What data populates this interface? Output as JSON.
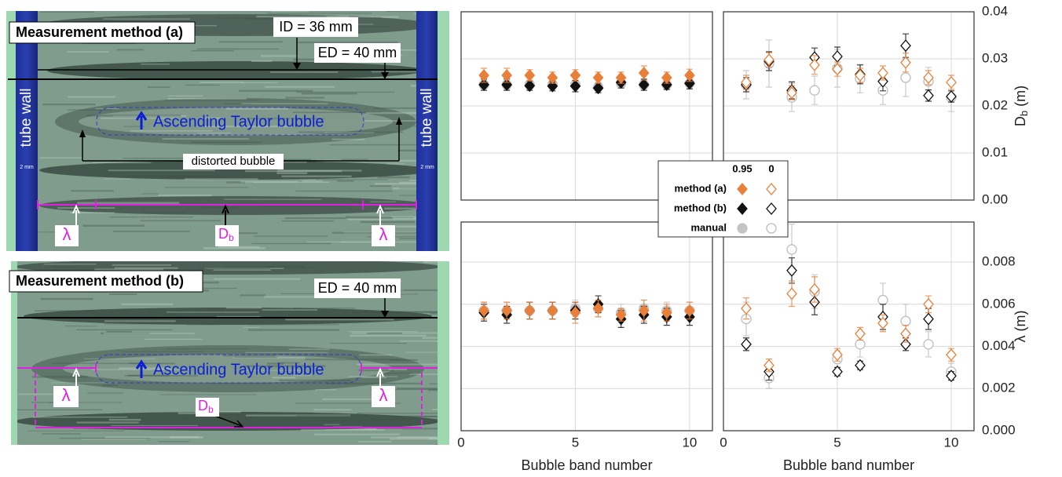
{
  "image_a": {
    "title": "Measurement method (a)",
    "id_label": "ID = 36 mm",
    "ed_label": "ED = 40 mm",
    "wall_label": "tube wall",
    "scale_label": "2 mm",
    "bubble_label": "Ascending Taylor bubble",
    "distorted_label": "distorted bubble",
    "lambda": "λ",
    "db": "D",
    "db_sub": "b"
  },
  "image_b": {
    "title": "Measurement method (b)",
    "ed_label": "ED = 40 mm",
    "bubble_label": "Ascending Taylor bubble",
    "lambda": "λ",
    "db": "D",
    "db_sub": "b"
  },
  "legend": {
    "columns": [
      "0.95",
      "0"
    ],
    "rows": [
      "method (a)",
      "method (b)",
      "manual"
    ]
  },
  "chart_data": [
    {
      "type": "scatter",
      "x": [
        1,
        2,
        3,
        4,
        5,
        6,
        7,
        8,
        9,
        10
      ],
      "xlim": [
        0,
        11
      ],
      "xticks": [
        0,
        5,
        10
      ],
      "ylim": [
        0,
        0.04
      ],
      "yticks": [
        {
          "value": 0,
          "label": "0.00"
        },
        0.01,
        0.02,
        0.03,
        0.04
      ],
      "grid": true,
      "show_xtick_labels": false,
      "show_ytick_labels": false,
      "series": [
        {
          "color": "#e8803a",
          "marker": "diamond",
          "filled": true,
          "values": [
            0.0265,
            0.0265,
            0.0265,
            0.026,
            0.0265,
            0.026,
            0.026,
            0.027,
            0.026,
            0.0265
          ],
          "errors": [
            0.0015,
            0.0015,
            0.0012,
            0.0012,
            0.0012,
            0.0012,
            0.0012,
            0.0015,
            0.0012,
            0.0013
          ]
        },
        {
          "color": "#111111",
          "marker": "diamond",
          "filled": true,
          "values": [
            0.0245,
            0.0245,
            0.0243,
            0.0242,
            0.0242,
            0.0238,
            0.025,
            0.0245,
            0.0245,
            0.0248
          ],
          "errors": [
            0.0012,
            0.0012,
            0.001,
            0.001,
            0.0012,
            0.001,
            0.0012,
            0.0012,
            0.001,
            0.0012
          ]
        },
        {
          "color": "#c4c4c4",
          "marker": "circle",
          "filled": true,
          "values": [
            0.0245,
            0.0245,
            0.0245,
            0.0245,
            0.0245,
            0.024,
            0.0248,
            0.0245,
            0.0245,
            0.0248
          ],
          "errors": [
            0.001,
            0.001,
            0.001,
            0.001,
            0.001,
            0.001,
            0.001,
            0.001,
            0.001,
            0.001
          ]
        }
      ]
    },
    {
      "type": "scatter",
      "x": [
        1,
        2,
        3,
        4,
        5,
        6,
        7,
        8,
        9,
        10
      ],
      "xlim": [
        0,
        11
      ],
      "xticks": [
        0,
        5,
        10
      ],
      "ylim": [
        0,
        0.04
      ],
      "yticks": [
        {
          "value": 0,
          "label": "0.00"
        },
        0.01,
        0.02,
        0.03,
        0.04
      ],
      "grid": true,
      "show_xtick_labels": false,
      "show_ytick_labels": true,
      "ylabel": {
        "text": "D",
        "sub": "b",
        "unit": " (m)"
      },
      "series": [
        {
          "color": "#e8803a",
          "marker": "diamond",
          "filled": false,
          "values": [
            0.025,
            0.0298,
            0.0228,
            0.0287,
            0.0278,
            0.0265,
            0.027,
            0.0292,
            0.026,
            0.025
          ],
          "errors": [
            0.0015,
            0.0015,
            0.0015,
            0.002,
            0.0015,
            0.0015,
            0.0015,
            0.002,
            0.0015,
            0.0015
          ]
        },
        {
          "color": "#111111",
          "marker": "diamond",
          "filled": false,
          "values": [
            0.0245,
            0.0295,
            0.0233,
            0.0303,
            0.0305,
            0.0267,
            0.0252,
            0.0328,
            0.0222,
            0.022
          ],
          "errors": [
            0.0015,
            0.002,
            0.0018,
            0.002,
            0.002,
            0.002,
            0.002,
            0.0025,
            0.0012,
            0.0012
          ]
        },
        {
          "color": "#bdbdbd",
          "marker": "circle",
          "filled": false,
          "values": [
            0.0245,
            0.029,
            0.0218,
            0.0233,
            0.028,
            0.0258,
            0.0233,
            0.026,
            0.0252,
            0.0218
          ],
          "errors": [
            0.003,
            0.005,
            0.003,
            0.003,
            0.004,
            0.003,
            0.003,
            0.004,
            0.003,
            0.003
          ]
        }
      ]
    },
    {
      "type": "scatter",
      "x": [
        1,
        2,
        3,
        4,
        5,
        6,
        7,
        8,
        9,
        10
      ],
      "xlim": [
        0,
        11
      ],
      "xticks": [
        0,
        5,
        10
      ],
      "ylim": [
        0,
        0.0099
      ],
      "yticks": [
        {
          "value": 0,
          "label": "0.000"
        },
        0.002,
        0.004,
        0.006,
        0.008
      ],
      "grid": true,
      "show_xtick_labels": true,
      "show_ytick_labels": false,
      "xlabel": "Bubble band number",
      "series": [
        {
          "color": "#e8803a",
          "marker": "diamond",
          "filled": true,
          "values": [
            0.0057,
            0.0057,
            0.0057,
            0.0057,
            0.0056,
            0.0058,
            0.0055,
            0.0057,
            0.0056,
            0.0057
          ],
          "errors": [
            0.0004,
            0.0004,
            0.0004,
            0.0004,
            0.0005,
            0.0004,
            0.0003,
            0.0005,
            0.0004,
            0.0004
          ]
        },
        {
          "color": "#111111",
          "marker": "diamond",
          "filled": true,
          "values": [
            0.0056,
            0.0055,
            0.0057,
            0.0057,
            0.0057,
            0.006,
            0.0053,
            0.0055,
            0.0054,
            0.0054
          ],
          "errors": [
            0.0004,
            0.0004,
            0.0004,
            0.0004,
            0.0004,
            0.0004,
            0.0004,
            0.0004,
            0.0004,
            0.0004
          ]
        },
        {
          "color": "#c4c4c4",
          "marker": "circle",
          "filled": true,
          "values": [
            0.0057,
            0.0057,
            0.0057,
            0.0057,
            0.0058,
            0.0058,
            0.0056,
            0.0058,
            0.0057,
            0.0057
          ],
          "errors": [
            0.0004,
            0.0004,
            0.0004,
            0.0004,
            0.0004,
            0.0004,
            0.0004,
            0.0004,
            0.0004,
            0.0004
          ]
        }
      ]
    },
    {
      "type": "scatter",
      "x": [
        1,
        2,
        3,
        4,
        5,
        6,
        7,
        8,
        9,
        10
      ],
      "xlim": [
        0,
        11
      ],
      "xticks": [
        0,
        5,
        10
      ],
      "ylim": [
        0,
        0.0099
      ],
      "yticks": [
        {
          "value": 0,
          "label": "0.000"
        },
        0.002,
        0.004,
        0.006,
        0.008
      ],
      "grid": true,
      "show_xtick_labels": true,
      "show_ytick_labels": true,
      "xlabel": "Bubble band number",
      "ylabel": {
        "text": "λ (m)"
      },
      "series": [
        {
          "color": "#e8803a",
          "marker": "diamond",
          "filled": false,
          "values": [
            0.0058,
            0.0031,
            0.0065,
            0.0067,
            0.0036,
            0.0046,
            0.0051,
            0.0046,
            0.006,
            0.0036
          ],
          "errors": [
            0.0005,
            0.0003,
            0.0006,
            0.0006,
            0.0003,
            0.0003,
            0.0004,
            0.0004,
            0.0004,
            0.0003
          ]
        },
        {
          "color": "#111111",
          "marker": "diamond",
          "filled": false,
          "values": [
            0.0041,
            0.0028,
            0.0076,
            0.0061,
            0.0028,
            0.0031,
            0.0054,
            0.0041,
            0.0053,
            0.0026
          ],
          "errors": [
            0.0003,
            0.0004,
            0.0006,
            0.0006,
            0.0002,
            0.0002,
            0.0006,
            0.0003,
            0.0005,
            0.0002
          ]
        },
        {
          "color": "#bdbdbd",
          "marker": "circle",
          "filled": false,
          "values": [
            0.0053,
            0.0025,
            0.0086,
            0.0066,
            0.0034,
            0.0041,
            0.0062,
            0.0052,
            0.0041,
            0.0028
          ],
          "errors": [
            0.0008,
            0.0005,
            0.0012,
            0.0008,
            0.0004,
            0.0006,
            0.0008,
            0.0008,
            0.0006,
            0.0004
          ]
        }
      ]
    }
  ]
}
